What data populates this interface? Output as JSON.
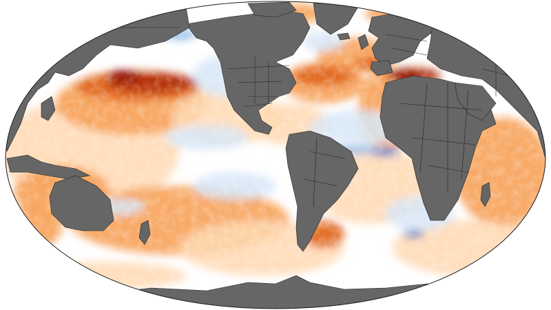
{
  "map": {
    "projection": "winkel-tripel-like",
    "central_meridian": "180",
    "layer": "sea-surface-temperature-anomaly",
    "colors": {
      "background": "#ffffff",
      "land": "#666666",
      "borders": "#222222",
      "neutral": "#ffffff",
      "light_cool": "#d6e6f7",
      "cool": "#8fb8e8",
      "cold": "#2f5fc4",
      "light_warm": "#ffd8b0",
      "warm": "#f7a25a",
      "hot": "#e0661c",
      "very_hot": "#b2300e",
      "extreme": "#8a0000"
    }
  }
}
